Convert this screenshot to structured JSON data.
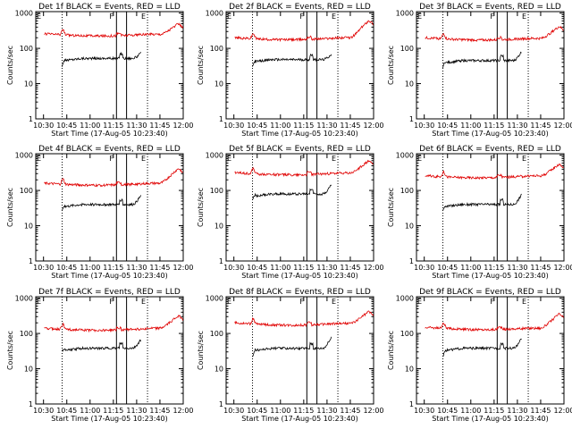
{
  "figure": {
    "x_tick_labels": [
      "10:30",
      "10:45",
      "11:00",
      "11:15",
      "11:30",
      "11:45",
      "12:00"
    ],
    "xlabel": "Start Time (17-Aug-05 10:23:40)",
    "ylabel": "Counts/sec",
    "y_tick_labels": [
      "1",
      "10",
      "100",
      "1000"
    ],
    "colors": {
      "events": "#000000",
      "lld": "#e00000"
    },
    "markers": {
      "start": "E",
      "flare": "F",
      "end": "E"
    }
  },
  "chart_data": [
    {
      "type": "line",
      "title": "Det 1f BLACK = Events, RED = LLD",
      "yscale": "log",
      "ylim": [
        1,
        1100
      ],
      "x_minutes_range": [
        10.5,
        100.0
      ],
      "series": [
        {
          "name": "Events",
          "x_start": 22,
          "x_end": 73,
          "start_value": 32,
          "level": 52,
          "end_value": 75
        },
        {
          "name": "LLD",
          "x_start": 10.5,
          "x_end": 100,
          "start_value": 260,
          "level": 250,
          "end_value": 500
        }
      ]
    },
    {
      "type": "line",
      "title": "Det 2f BLACK = Events, RED = LLD",
      "yscale": "log",
      "ylim": [
        1,
        1100
      ],
      "x_minutes_range": [
        10.5,
        100.0
      ],
      "series": [
        {
          "name": "Events",
          "x_start": 22,
          "x_end": 73,
          "start_value": 30,
          "level": 48,
          "end_value": 70
        },
        {
          "name": "LLD",
          "x_start": 10.5,
          "x_end": 100,
          "start_value": 200,
          "level": 200,
          "end_value": 620
        }
      ]
    },
    {
      "type": "line",
      "title": "Det 3f BLACK = Events, RED = LLD",
      "yscale": "log",
      "ylim": [
        1,
        1100
      ],
      "x_minutes_range": [
        10.5,
        100.0
      ],
      "series": [
        {
          "name": "Events",
          "x_start": 22,
          "x_end": 73,
          "start_value": 30,
          "level": 45,
          "end_value": 85
        },
        {
          "name": "LLD",
          "x_start": 10.5,
          "x_end": 100,
          "start_value": 200,
          "level": 190,
          "end_value": 420
        }
      ]
    },
    {
      "type": "line",
      "title": "Det 4f BLACK = Events, RED = LLD",
      "yscale": "log",
      "ylim": [
        1,
        1100
      ],
      "x_minutes_range": [
        10.5,
        100.0
      ],
      "series": [
        {
          "name": "Events",
          "x_start": 22,
          "x_end": 73,
          "start_value": 28,
          "level": 40,
          "end_value": 75
        },
        {
          "name": "LLD",
          "x_start": 10.5,
          "x_end": 100,
          "start_value": 160,
          "level": 160,
          "end_value": 420
        }
      ]
    },
    {
      "type": "line",
      "title": "Det 5f BLACK = Events, RED = LLD",
      "yscale": "log",
      "ylim": [
        1,
        1100
      ],
      "x_minutes_range": [
        10.5,
        100.0
      ],
      "series": [
        {
          "name": "Events",
          "x_start": 22,
          "x_end": 73,
          "start_value": 55,
          "level": 80,
          "end_value": 150
        },
        {
          "name": "LLD",
          "x_start": 10.5,
          "x_end": 100,
          "start_value": 320,
          "level": 310,
          "end_value": 700
        }
      ]
    },
    {
      "type": "line",
      "title": "Det 6f BLACK = Events, RED = LLD",
      "yscale": "log",
      "ylim": [
        1,
        1100
      ],
      "x_minutes_range": [
        10.5,
        100.0
      ],
      "series": [
        {
          "name": "Events",
          "x_start": 22,
          "x_end": 73,
          "start_value": 28,
          "level": 40,
          "end_value": 80
        },
        {
          "name": "LLD",
          "x_start": 10.5,
          "x_end": 100,
          "start_value": 260,
          "level": 260,
          "end_value": 560
        }
      ]
    },
    {
      "type": "line",
      "title": "Det 7f BLACK = Events, RED = LLD",
      "yscale": "log",
      "ylim": [
        1,
        1100
      ],
      "x_minutes_range": [
        10.5,
        100.0
      ],
      "series": [
        {
          "name": "Events",
          "x_start": 22,
          "x_end": 73,
          "start_value": 32,
          "level": 38,
          "end_value": 70
        },
        {
          "name": "LLD",
          "x_start": 10.5,
          "x_end": 100,
          "start_value": 140,
          "level": 140,
          "end_value": 320
        }
      ]
    },
    {
      "type": "line",
      "title": "Det 8f BLACK = Events, RED = LLD",
      "yscale": "log",
      "ylim": [
        1,
        1100
      ],
      "x_minutes_range": [
        10.5,
        100.0
      ],
      "series": [
        {
          "name": "Events",
          "x_start": 22,
          "x_end": 73,
          "start_value": 22,
          "level": 38,
          "end_value": 80
        },
        {
          "name": "LLD",
          "x_start": 10.5,
          "x_end": 100,
          "start_value": 200,
          "level": 190,
          "end_value": 420
        }
      ]
    },
    {
      "type": "line",
      "title": "Det 9f BLACK = Events, RED = LLD",
      "yscale": "log",
      "ylim": [
        1,
        1100
      ],
      "x_minutes_range": [
        10.5,
        100.0
      ],
      "series": [
        {
          "name": "Events",
          "x_start": 22,
          "x_end": 73,
          "start_value": 22,
          "level": 38,
          "end_value": 75
        },
        {
          "name": "LLD",
          "x_start": 10.5,
          "x_end": 100,
          "start_value": 150,
          "level": 140,
          "end_value": 360
        }
      ]
    }
  ]
}
